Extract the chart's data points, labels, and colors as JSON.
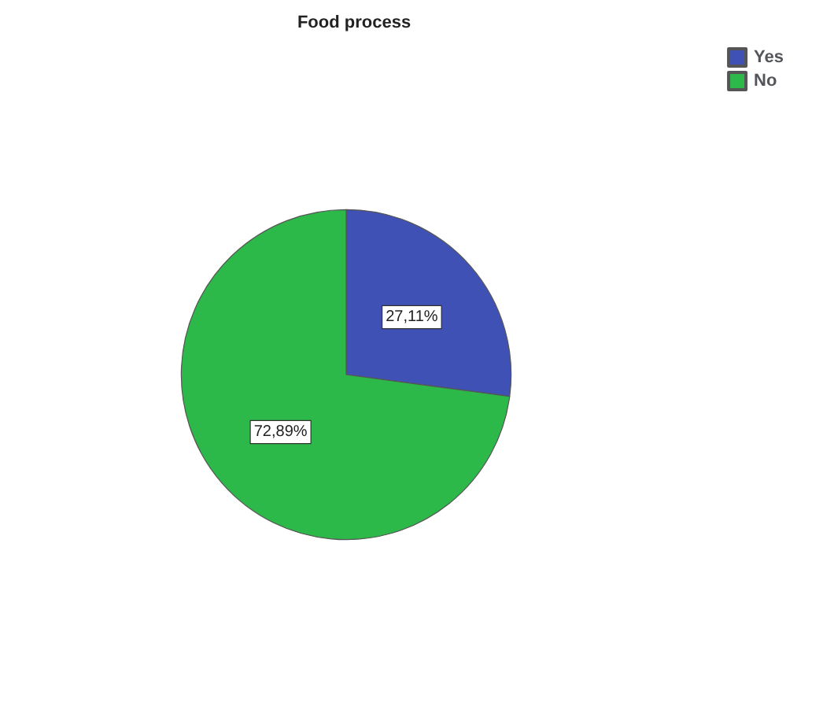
{
  "chart_data": {
    "type": "pie",
    "title": "Food process",
    "categories": [
      "Yes",
      "No"
    ],
    "values": [
      27.11,
      72.89
    ],
    "colors": [
      "#3f51b5",
      "#2db84a"
    ],
    "value_labels": [
      "27,11%",
      "72,89%"
    ],
    "legend": "top right"
  }
}
